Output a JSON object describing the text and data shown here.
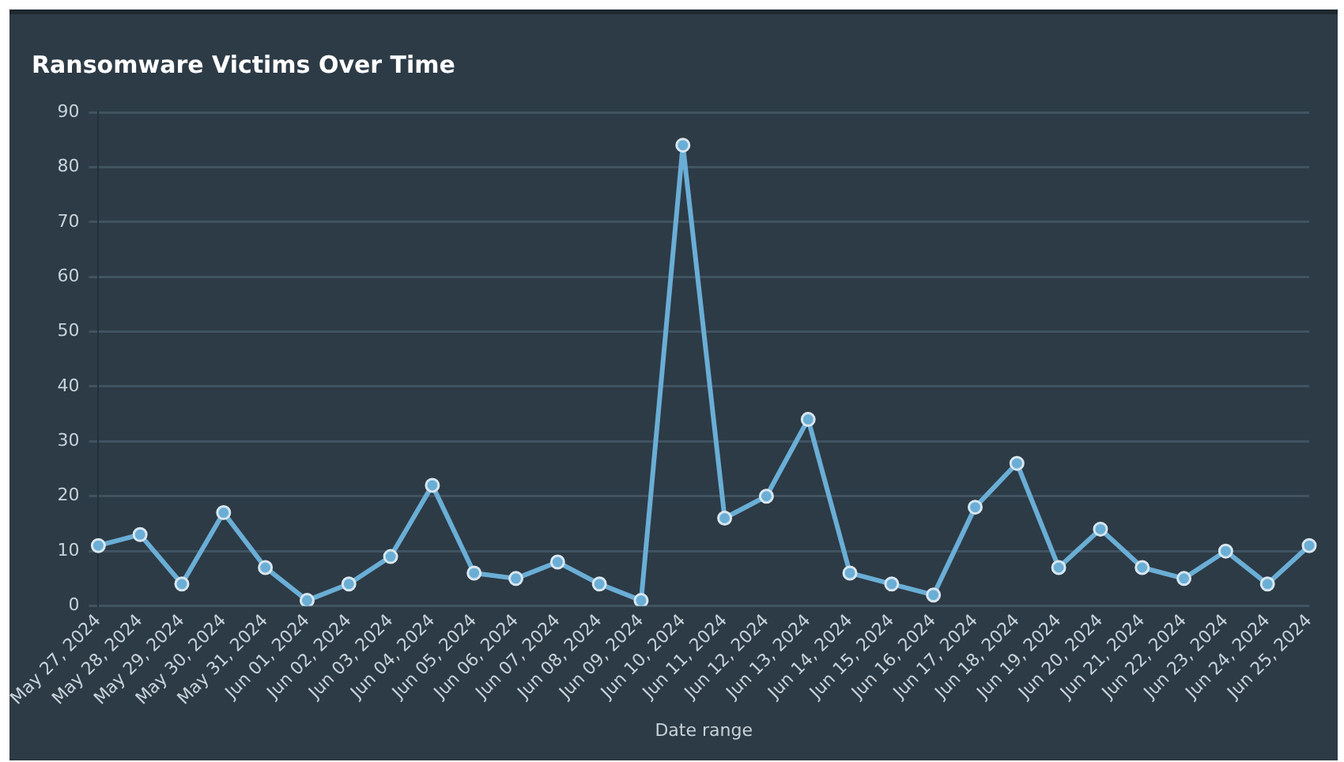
{
  "chart_data": {
    "type": "line",
    "title": "Ransomware Victims Over Time",
    "xlabel": "Date range",
    "categories": [
      "May 27, 2024",
      "May 28, 2024",
      "May 29, 2024",
      "May 30, 2024",
      "May 31, 2024",
      "Jun 01, 2024",
      "Jun 02, 2024",
      "Jun 03, 2024",
      "Jun 04, 2024",
      "Jun 05, 2024",
      "Jun 06, 2024",
      "Jun 07, 2024",
      "Jun 08, 2024",
      "Jun 09, 2024",
      "Jun 10, 2024",
      "Jun 11, 2024",
      "Jun 12, 2024",
      "Jun 13, 2024",
      "Jun 14, 2024",
      "Jun 15, 2024",
      "Jun 16, 2024",
      "Jun 17, 2024",
      "Jun 18, 2024",
      "Jun 19, 2024",
      "Jun 20, 2024",
      "Jun 21, 2024",
      "Jun 22, 2024",
      "Jun 23, 2024",
      "Jun 24, 2024",
      "Jun 25, 2024"
    ],
    "series": [
      {
        "color": "#6aaed6",
        "values": [
          11,
          13,
          4,
          17,
          7,
          1,
          4,
          9,
          22,
          6,
          5,
          8,
          4,
          1,
          84,
          16,
          20,
          34,
          6,
          4,
          2,
          18,
          26,
          7,
          14,
          7,
          5,
          10,
          4,
          11
        ]
      }
    ],
    "ylim": [
      0,
      90
    ],
    "yticks": [
      0,
      10,
      20,
      30,
      40,
      50,
      60,
      70,
      80,
      90
    ],
    "grid": "y",
    "legend": false,
    "marker": "circle",
    "line_style": "solid"
  }
}
